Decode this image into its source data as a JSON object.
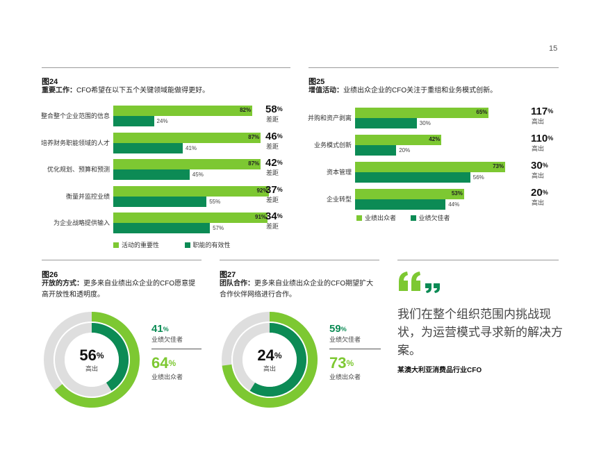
{
  "page_number": "15",
  "fig24": {
    "number": "图24",
    "title_bold": "重要工作：",
    "title_rest": "CFO希望在以下五个关键领域能做得更好。",
    "legend": [
      {
        "label": "活动的重要性",
        "color": "#7dc832"
      },
      {
        "label": "职能的有效性",
        "color": "#0c8b55"
      }
    ]
  },
  "fig25": {
    "number": "图25",
    "title_bold": "增值活动：",
    "title_rest": "业绩出众企业的CFO关注于重组和业务模式创新。",
    "legend": [
      {
        "label": "业绩出众者",
        "color": "#7dc832"
      },
      {
        "label": "业绩欠佳者",
        "color": "#0c8b55"
      }
    ]
  },
  "fig26": {
    "number": "图26",
    "title_bold": "开放的方式：",
    "title_rest_line1": "更多来自业绩出众企业的CFO愿意提",
    "title_rest_line2": "高开放性和透明度。"
  },
  "fig27": {
    "number": "图27",
    "title_bold": "团队合作：",
    "title_rest_line1": "更多来自业绩出众企业的CFO期望扩大",
    "title_rest_line2": "合作伙伴网络进行合作。"
  },
  "quote": {
    "mark": "“”",
    "line1": "我们在整个组织范围内挑战现",
    "line2": "状，为运营模式寻求新的解决方",
    "line3": "案。",
    "source": "某澳大利亚消费品行业CFO"
  },
  "chart_data": [
    {
      "type": "bar",
      "title": "图24",
      "categories": [
        "整合整个企业范围的信息",
        "培养财务职能领域的人才",
        "优化规划、预算和预测",
        "衡量并监控业绩",
        "为企业战略提供输入"
      ],
      "series": [
        {
          "name": "活动的重要性",
          "values": [
            82,
            87,
            87,
            92,
            91
          ]
        },
        {
          "name": "职能的有效性",
          "values": [
            24,
            41,
            45,
            55,
            57
          ]
        }
      ],
      "gap_values": [
        "58",
        "46",
        "42",
        "37",
        "34"
      ],
      "gap_unit": "%",
      "gap_label": "差距",
      "value_suffix": "%",
      "xlim": [
        0,
        100
      ],
      "legend": "bottom"
    },
    {
      "type": "bar",
      "title": "图25",
      "categories": [
        "并购和资产剥离",
        "业务模式创新",
        "资本管理",
        "企业转型"
      ],
      "series": [
        {
          "name": "业绩出众者",
          "values": [
            65,
            42,
            73,
            53
          ]
        },
        {
          "name": "业绩欠佳者",
          "values": [
            30,
            20,
            56,
            44
          ]
        }
      ],
      "gap_values": [
        "117",
        "110",
        "30",
        "20"
      ],
      "gap_unit": "%",
      "gap_label": "高出",
      "value_suffix": "%",
      "xlim": [
        0,
        100
      ],
      "legend": "bottom"
    },
    {
      "type": "pie",
      "title": "图26",
      "center_value": "56",
      "center_unit": "%",
      "center_label": "高出",
      "series": [
        {
          "name": "业绩欠佳者",
          "value": 41,
          "color": "#0c8b55",
          "ring": "inner"
        },
        {
          "name": "业绩出众者",
          "value": 64,
          "color": "#7dc832",
          "ring": "outer"
        }
      ],
      "stat_unit": "%"
    },
    {
      "type": "pie",
      "title": "图27",
      "center_value": "24",
      "center_unit": "%",
      "center_label": "高出",
      "series": [
        {
          "name": "业绩欠佳者",
          "value": 59,
          "color": "#0c8b55",
          "ring": "inner"
        },
        {
          "name": "业绩出众者",
          "value": 73,
          "color": "#7dc832",
          "ring": "outer"
        }
      ],
      "stat_unit": "%"
    }
  ]
}
